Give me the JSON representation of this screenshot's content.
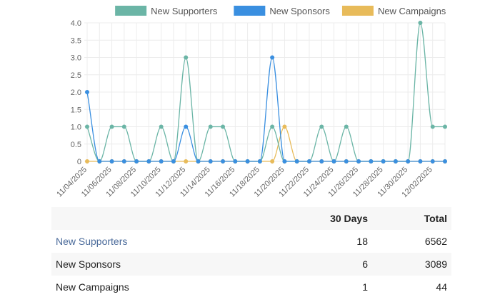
{
  "chart_data": {
    "type": "line",
    "x": [
      "11/04/2025",
      "11/05/2025",
      "11/06/2025",
      "11/07/2025",
      "11/08/2025",
      "11/09/2025",
      "11/10/2025",
      "11/11/2025",
      "11/12/2025",
      "11/13/2025",
      "11/14/2025",
      "11/15/2025",
      "11/16/2025",
      "11/17/2025",
      "11/18/2025",
      "11/19/2025",
      "11/20/2025",
      "11/21/2025",
      "11/22/2025",
      "11/23/2025",
      "11/24/2025",
      "11/25/2025",
      "11/26/2025",
      "11/27/2025",
      "11/28/2025",
      "11/29/2025",
      "11/30/2025",
      "12/01/2025",
      "12/02/2025",
      "12/03/2025"
    ],
    "x_tick_labels": [
      "11/04/2025",
      "11/06/2025",
      "11/08/2025",
      "11/10/2025",
      "11/12/2025",
      "11/14/2025",
      "11/16/2025",
      "11/18/2025",
      "11/20/2025",
      "11/22/2025",
      "11/24/2025",
      "11/26/2025",
      "11/28/2025",
      "11/30/2025",
      "12/02/2025"
    ],
    "series": [
      {
        "name": "New Supporters",
        "color": "#6bb5a6",
        "values": [
          1,
          0,
          1,
          1,
          0,
          0,
          1,
          0,
          3,
          0,
          1,
          1,
          0,
          0,
          0,
          1,
          0,
          0,
          0,
          1,
          0,
          1,
          0,
          0,
          0,
          0,
          0,
          4,
          1,
          1
        ]
      },
      {
        "name": "New Sponsors",
        "color": "#3a8fe0",
        "values": [
          2,
          0,
          0,
          0,
          0,
          0,
          0,
          0,
          1,
          0,
          0,
          0,
          0,
          0,
          0,
          3,
          0,
          0,
          0,
          0,
          0,
          0,
          0,
          0,
          0,
          0,
          0,
          0,
          0,
          0
        ]
      },
      {
        "name": "New Campaigns",
        "color": "#e8bb5a",
        "values": [
          0,
          0,
          0,
          0,
          0,
          0,
          0,
          0,
          0,
          0,
          0,
          0,
          0,
          0,
          0,
          0,
          1,
          0,
          0,
          0,
          0,
          0,
          0,
          0,
          0,
          0,
          0,
          0,
          0,
          0
        ]
      }
    ],
    "ylim": [
      0,
      4
    ],
    "y_ticks": [
      "0",
      "0.5",
      "1.0",
      "1.5",
      "2.0",
      "2.5",
      "3.0",
      "3.5",
      "4.0"
    ],
    "grid": true,
    "legend": "top"
  },
  "table": {
    "headers": [
      "",
      "30 Days",
      "Total"
    ],
    "rows": [
      {
        "name": "New Supporters",
        "days": "18",
        "total": "6562"
      },
      {
        "name": "New Sponsors",
        "days": "6",
        "total": "3089"
      },
      {
        "name": "New Campaigns",
        "days": "1",
        "total": "44"
      }
    ]
  }
}
